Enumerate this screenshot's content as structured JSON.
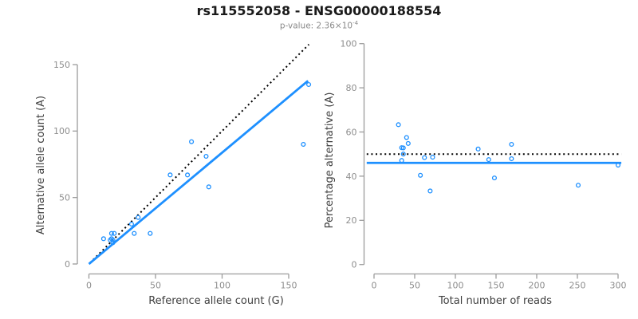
{
  "header": {
    "title": "rs115552058 - ENSG00000188554",
    "subtitle_prefix": "p-value: 2.36×10",
    "subtitle_exponent": "-4"
  },
  "colors": {
    "accent_blue": "#1E90FF",
    "dotted_black": "#000000",
    "axis_line": "#9c9c9c",
    "tick_label": "#8e8e8e",
    "axis_title": "#3f3f3f",
    "title_color": "#1a1a1a",
    "subtitle_color": "#8a8a8a",
    "background": "#ffffff"
  },
  "chart_data": {
    "type": "scatter",
    "figure_title": "rs115552058 - ENSG00000188554",
    "p_value_label": "p-value: 2.36×10⁻⁴",
    "panels": [
      {
        "name": "allele-counts-panel",
        "xlabel": "Reference allele count (G)",
        "ylabel": "Alternative allele count (A)",
        "xlim": [
          0,
          167
        ],
        "ylim": [
          0,
          165
        ],
        "xticks": [
          0,
          50,
          100,
          150
        ],
        "yticks": [
          0,
          50,
          100,
          150
        ],
        "grid": false,
        "points": [
          [
            11,
            19
          ],
          [
            16,
            18
          ],
          [
            17,
            19
          ],
          [
            18,
            18
          ],
          [
            18,
            16
          ],
          [
            17,
            23
          ],
          [
            19,
            23
          ],
          [
            32,
            30
          ],
          [
            34,
            23
          ],
          [
            37,
            35
          ],
          [
            46,
            23
          ],
          [
            61,
            67
          ],
          [
            74,
            67
          ],
          [
            77,
            92
          ],
          [
            88,
            81
          ],
          [
            90,
            58
          ],
          [
            161,
            90
          ],
          [
            165,
            135
          ]
        ],
        "lines": [
          {
            "name": "identity-line",
            "style": "dotted",
            "color": "#000000",
            "points": [
              [
                0.8,
                0.8
              ],
              [
                165.2,
                165.2
              ]
            ]
          },
          {
            "name": "regression-line",
            "style": "solid",
            "color": "#1E90FF",
            "points": [
              [
                0,
                0
              ],
              [
                164.5,
                137.8
              ]
            ]
          }
        ]
      },
      {
        "name": "percentage-panel",
        "xlabel": "Total number of reads",
        "ylabel": "Percentage alternative (A)",
        "xlim": [
          0,
          304
        ],
        "ylim": [
          0,
          100
        ],
        "xticks": [
          0,
          50,
          100,
          150,
          200,
          250,
          300
        ],
        "yticks": [
          0,
          20,
          40,
          60,
          80,
          100
        ],
        "grid": false,
        "points": [
          [
            30,
            63.3
          ],
          [
            34,
            52.9
          ],
          [
            36,
            52.8
          ],
          [
            36,
            50.0
          ],
          [
            34,
            47.1
          ],
          [
            40,
            57.5
          ],
          [
            42,
            54.8
          ],
          [
            62,
            48.4
          ],
          [
            57,
            40.4
          ],
          [
            72,
            48.6
          ],
          [
            69,
            33.3
          ],
          [
            128,
            52.3
          ],
          [
            141,
            47.5
          ],
          [
            169,
            54.4
          ],
          [
            169,
            47.9
          ],
          [
            148,
            39.2
          ],
          [
            251,
            35.9
          ],
          [
            300,
            45.0
          ]
        ],
        "lines": [
          {
            "name": "fifty-percent-reference-line",
            "style": "dotted",
            "color": "#000000",
            "points": [
              [
                -9,
                50
              ],
              [
                304,
                50
              ]
            ]
          },
          {
            "name": "mean-percentage-line",
            "style": "solid",
            "color": "#1E90FF",
            "points": [
              [
                -9,
                46
              ],
              [
                304,
                46
              ]
            ]
          }
        ]
      }
    ]
  }
}
